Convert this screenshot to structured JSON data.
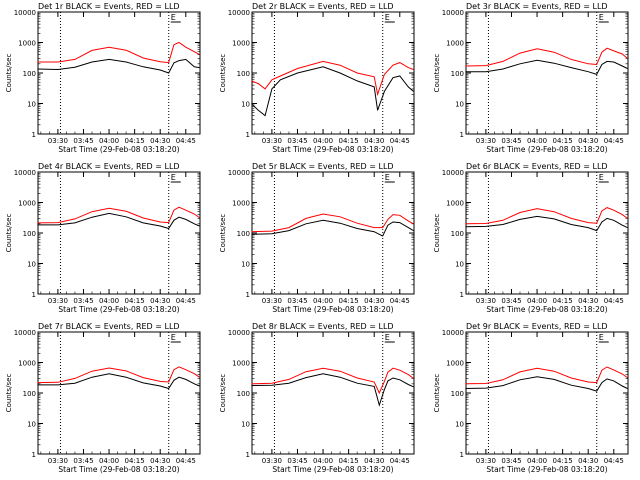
{
  "ylabel": "Counts/sec",
  "xlabel": "Start Time (29-Feb-08 03:18:20)",
  "y_ticks": [
    "1",
    "10",
    "100",
    "1000",
    "10000"
  ],
  "x_ticks": [
    "03:30",
    "03:45",
    "04:00",
    "04:15",
    "04:30",
    "04:45"
  ],
  "colors": {
    "events": "#000000",
    "lld": "#ff0000",
    "axes": "#000000"
  },
  "chart_data": [
    {
      "type": "line",
      "title": "Det 1r BLACK = Events, RED = LLD",
      "marker": "E",
      "yscale": "log",
      "ylim": [
        1,
        10000
      ],
      "xlim": [
        "03:18:20",
        "04:53:20"
      ],
      "dotted_lines": [
        "03:31:30",
        "04:35:00"
      ],
      "x": [
        "03:18",
        "03:30",
        "03:40",
        "03:50",
        "04:00",
        "04:10",
        "04:20",
        "04:30",
        "04:35",
        "04:38",
        "04:41",
        "04:45",
        "04:50",
        "04:53"
      ],
      "series": [
        {
          "name": "Events",
          "values": [
            135,
            130,
            155,
            230,
            280,
            230,
            160,
            125,
            100,
            215,
            255,
            280,
            160,
            150
          ]
        },
        {
          "name": "LLD",
          "values": [
            230,
            230,
            280,
            550,
            700,
            560,
            310,
            235,
            220,
            850,
            1000,
            700,
            500,
            400
          ]
        }
      ]
    },
    {
      "type": "line",
      "title": "Det 2r BLACK = Events, RED = LLD",
      "marker": "E",
      "yscale": "log",
      "ylim": [
        1,
        10000
      ],
      "xlim": [
        "03:18:20",
        "04:53:20"
      ],
      "dotted_lines": [
        "03:31:30",
        "04:35:00"
      ],
      "x": [
        "03:18",
        "03:22",
        "03:26",
        "03:30",
        "03:35",
        "03:45",
        "04:00",
        "04:10",
        "04:20",
        "04:30",
        "04:32",
        "04:36",
        "04:41",
        "04:45",
        "04:50",
        "04:53"
      ],
      "series": [
        {
          "name": "Events",
          "values": [
            10,
            6,
            4,
            30,
            60,
            100,
            160,
            100,
            55,
            35,
            6,
            25,
            70,
            80,
            35,
            25
          ]
        },
        {
          "name": "LLD",
          "values": [
            55,
            45,
            30,
            60,
            80,
            140,
            240,
            180,
            100,
            75,
            20,
            90,
            180,
            220,
            150,
            130
          ]
        }
      ]
    },
    {
      "type": "line",
      "title": "Det 3r BLACK = Events, RED = LLD",
      "marker": "E",
      "yscale": "log",
      "ylim": [
        1,
        10000
      ],
      "xlim": [
        "03:18:20",
        "04:53:20"
      ],
      "dotted_lines": [
        "03:31:30",
        "04:35:00"
      ],
      "x": [
        "03:18",
        "03:30",
        "03:40",
        "03:50",
        "04:00",
        "04:10",
        "04:20",
        "04:30",
        "04:35",
        "04:38",
        "04:41",
        "04:45",
        "04:50",
        "04:53"
      ],
      "series": [
        {
          "name": "Events",
          "values": [
            110,
            110,
            135,
            200,
            260,
            210,
            150,
            110,
            90,
            190,
            240,
            230,
            170,
            140
          ]
        },
        {
          "name": "LLD",
          "values": [
            170,
            175,
            240,
            450,
            620,
            480,
            280,
            200,
            190,
            480,
            650,
            530,
            420,
            300
          ]
        }
      ]
    },
    {
      "type": "line",
      "title": "Det 4r BLACK = Events, RED = LLD",
      "marker": "E",
      "yscale": "log",
      "ylim": [
        1,
        10000
      ],
      "xlim": [
        "03:18:20",
        "04:53:20"
      ],
      "dotted_lines": [
        "03:31:30",
        "04:35:00"
      ],
      "x": [
        "03:18",
        "03:30",
        "03:40",
        "03:50",
        "04:00",
        "04:10",
        "04:20",
        "04:30",
        "04:35",
        "04:38",
        "04:41",
        "04:45",
        "04:50",
        "04:53"
      ],
      "series": [
        {
          "name": "Events",
          "values": [
            185,
            185,
            215,
            330,
            440,
            340,
            215,
            170,
            140,
            260,
            330,
            280,
            200,
            170
          ]
        },
        {
          "name": "LLD",
          "values": [
            215,
            220,
            290,
            500,
            650,
            520,
            310,
            230,
            220,
            560,
            700,
            560,
            420,
            320
          ]
        }
      ]
    },
    {
      "type": "line",
      "title": "Det 5r BLACK = Events, RED = LLD",
      "marker": "E",
      "yscale": "log",
      "ylim": [
        1,
        10000
      ],
      "xlim": [
        "03:18:20",
        "04:53:20"
      ],
      "dotted_lines": [
        "03:31:30",
        "04:35:00"
      ],
      "x": [
        "03:18",
        "03:30",
        "03:40",
        "03:50",
        "04:00",
        "04:10",
        "04:20",
        "04:30",
        "04:35",
        "04:38",
        "04:41",
        "04:45",
        "04:50",
        "04:53"
      ],
      "series": [
        {
          "name": "Events",
          "values": [
            90,
            95,
            120,
            200,
            260,
            210,
            140,
            110,
            80,
            180,
            230,
            220,
            150,
            120
          ]
        },
        {
          "name": "LLD",
          "values": [
            110,
            115,
            150,
            300,
            420,
            340,
            210,
            150,
            150,
            280,
            400,
            380,
            250,
            200
          ]
        }
      ]
    },
    {
      "type": "line",
      "title": "Det 6r BLACK = Events, RED = LLD",
      "marker": "E",
      "yscale": "log",
      "ylim": [
        1,
        10000
      ],
      "xlim": [
        "03:18:20",
        "04:53:20"
      ],
      "dotted_lines": [
        "03:31:30",
        "04:35:00"
      ],
      "x": [
        "03:18",
        "03:30",
        "03:40",
        "03:50",
        "04:00",
        "04:10",
        "04:20",
        "04:30",
        "04:35",
        "04:38",
        "04:41",
        "04:45",
        "04:50",
        "04:53"
      ],
      "series": [
        {
          "name": "Events",
          "values": [
            160,
            165,
            190,
            280,
            350,
            290,
            190,
            150,
            120,
            230,
            300,
            260,
            180,
            150
          ]
        },
        {
          "name": "LLD",
          "values": [
            200,
            205,
            260,
            470,
            630,
            500,
            300,
            220,
            210,
            530,
            680,
            560,
            400,
            300
          ]
        }
      ]
    },
    {
      "type": "line",
      "title": "Det 7r BLACK = Events, RED = LLD",
      "marker": "E",
      "yscale": "log",
      "ylim": [
        1,
        10000
      ],
      "xlim": [
        "03:18:20",
        "04:53:20"
      ],
      "dotted_lines": [
        "03:31:30",
        "04:35:00"
      ],
      "x": [
        "03:18",
        "03:30",
        "03:40",
        "03:50",
        "04:00",
        "04:10",
        "04:20",
        "04:30",
        "04:35",
        "04:38",
        "04:41",
        "04:45",
        "04:50",
        "04:53"
      ],
      "series": [
        {
          "name": "Events",
          "values": [
            185,
            185,
            210,
            330,
            430,
            330,
            215,
            170,
            140,
            260,
            330,
            280,
            200,
            170
          ]
        },
        {
          "name": "LLD",
          "values": [
            220,
            225,
            300,
            520,
            660,
            530,
            320,
            240,
            230,
            580,
            720,
            580,
            430,
            330
          ]
        }
      ]
    },
    {
      "type": "line",
      "title": "Det 8r BLACK = Events, RED = LLD",
      "marker": "E",
      "yscale": "log",
      "ylim": [
        1,
        10000
      ],
      "xlim": [
        "03:18:20",
        "04:53:20"
      ],
      "dotted_lines": [
        "03:31:30",
        "04:35:00"
      ],
      "x": [
        "03:18",
        "03:30",
        "03:40",
        "03:50",
        "04:00",
        "04:10",
        "04:20",
        "04:30",
        "04:33",
        "04:36",
        "04:38",
        "04:41",
        "04:45",
        "04:50",
        "04:53"
      ],
      "series": [
        {
          "name": "Events",
          "values": [
            175,
            180,
            210,
            320,
            430,
            330,
            210,
            165,
            40,
            130,
            250,
            310,
            270,
            190,
            160
          ]
        },
        {
          "name": "LLD",
          "values": [
            200,
            210,
            280,
            500,
            650,
            520,
            310,
            230,
            100,
            240,
            480,
            650,
            560,
            400,
            300
          ]
        }
      ]
    },
    {
      "type": "line",
      "title": "Det 9r BLACK = Events, RED = LLD",
      "marker": "E",
      "yscale": "log",
      "ylim": [
        1,
        10000
      ],
      "xlim": [
        "03:18:20",
        "04:53:20"
      ],
      "dotted_lines": [
        "03:31:30",
        "04:35:00"
      ],
      "x": [
        "03:18",
        "03:30",
        "03:40",
        "03:50",
        "04:00",
        "04:10",
        "04:20",
        "04:30",
        "04:35",
        "04:38",
        "04:41",
        "04:45",
        "04:50",
        "04:53"
      ],
      "series": [
        {
          "name": "Events",
          "values": [
            140,
            145,
            175,
            270,
            340,
            280,
            180,
            140,
            115,
            220,
            290,
            250,
            170,
            140
          ]
        },
        {
          "name": "LLD",
          "values": [
            200,
            205,
            270,
            490,
            650,
            520,
            310,
            230,
            220,
            560,
            710,
            570,
            420,
            320
          ]
        }
      ]
    }
  ]
}
